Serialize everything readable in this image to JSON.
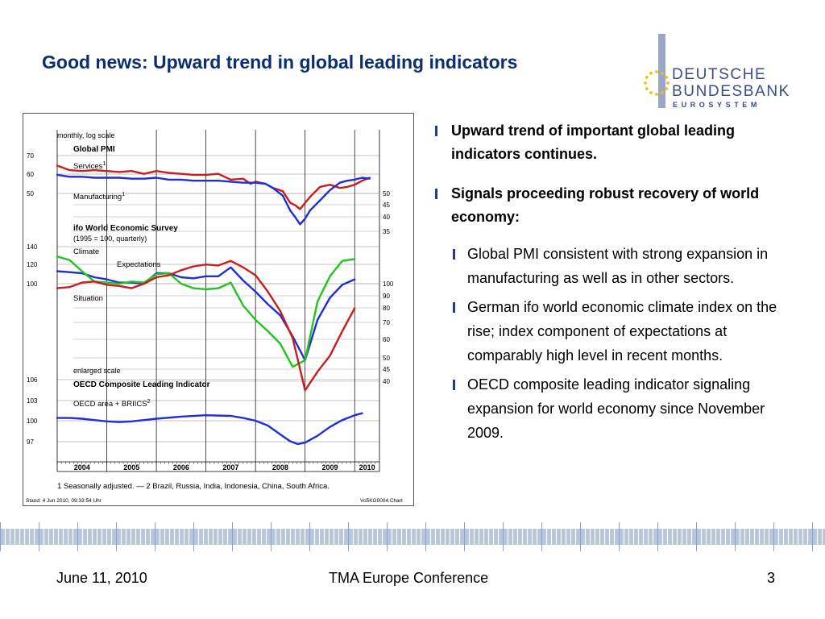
{
  "slide": {
    "title": "Good news: Upward trend in global leading indicators",
    "logo": {
      "word1": "DEUTSCHE",
      "word2": "BUNDESBANK",
      "word3": "EUROSYSTEM"
    },
    "bullets": [
      {
        "level": 1,
        "text": "Upward trend of important global leading indicators continues."
      },
      {
        "level": 1,
        "text": "Signals proceeding robust recovery of world economy:"
      },
      {
        "level": 2,
        "text": "Global PMI consistent with strong expansion in manufacturing as well as in other sectors."
      },
      {
        "level": 2,
        "text": "German ifo world economic climate index on the rise; index component of expectations at comparably high level in recent months."
      },
      {
        "level": 2,
        "text": "OECD composite leading indicator signaling expansion for world economy since November 2009."
      }
    ],
    "colors": {
      "title": "#0b2d72",
      "bullet_mark": "#1f3d8a",
      "red": "#c81e1e",
      "blue": "#1f2fd6",
      "green": "#22c51e"
    }
  },
  "footer": {
    "date": "June 11, 2010",
    "event": "TMA Europe Conference",
    "page": "3"
  },
  "chart_texts": {
    "scale_note": "monthly, log scale",
    "pmi_title": "Global PMI",
    "pmi_services": "Services",
    "pmi_manufacturing": "Manufacturing",
    "sup1": "1",
    "sup2": "2",
    "ifo_title": "ifo World Economic Survey",
    "ifo_subtitle": "(1995 = 100, quarterly)",
    "ifo_climate": "Climate",
    "ifo_expectations": "Expectations",
    "ifo_situation": "Situation",
    "oecd_scale": "enlarged scale",
    "oecd_title": "OECD Composite Leading Indicator",
    "oecd_series": "OECD area + BRIICS",
    "footnote": "1 Seasonally adjusted. — 2 Brazil, Russia, India, Indonesia, China, South Africa.",
    "stamp_left": "Stand: 4 Jun 2010, 09:33:54 Uhr",
    "stamp_right": "Vo5KG0004.Chart"
  },
  "chart_data": [
    {
      "type": "line",
      "title": "Global PMI",
      "scale": "log",
      "left_ticks": [
        50,
        60,
        70
      ],
      "right_ticks": [
        35,
        40,
        45,
        50
      ],
      "ylim": [
        50,
        70
      ],
      "series": [
        {
          "name": "Services",
          "color": "#c81e1e",
          "x": [
            2004.0,
            2004.25,
            2004.5,
            2004.75,
            2005.0,
            2005.25,
            2005.5,
            2005.75,
            2006.0,
            2006.25,
            2006.5,
            2006.75,
            2007.0,
            2007.25,
            2007.5,
            2007.75,
            2007.9,
            2008.0,
            2008.2,
            2008.35,
            2008.55,
            2008.7,
            2008.8,
            2008.9,
            2009.0,
            2009.1,
            2009.3,
            2009.5,
            2009.7,
            2009.85,
            2010.0,
            2010.15,
            2010.3
          ],
          "y": [
            64,
            61.5,
            61,
            61.5,
            61,
            60.5,
            61,
            59.5,
            61,
            60,
            59.5,
            59,
            59,
            59.5,
            56.5,
            57,
            54.5,
            55.5,
            54.5,
            52.5,
            51,
            46,
            45,
            43.5,
            46,
            48.5,
            53,
            54,
            52.5,
            53,
            54,
            56,
            57.5
          ]
        },
        {
          "name": "Manufacturing",
          "color": "#1f2fd6",
          "x": [
            2004.0,
            2004.25,
            2004.5,
            2004.75,
            2005.0,
            2005.25,
            2005.5,
            2005.75,
            2006.0,
            2006.25,
            2006.5,
            2006.75,
            2007.0,
            2007.25,
            2007.5,
            2007.75,
            2008.0,
            2008.2,
            2008.35,
            2008.55,
            2008.7,
            2008.8,
            2008.9,
            2009.0,
            2009.1,
            2009.3,
            2009.5,
            2009.7,
            2009.85,
            2010.0,
            2010.15,
            2010.3
          ],
          "y": [
            59,
            58,
            58,
            57.5,
            57.5,
            57.5,
            57,
            57,
            57.5,
            56.5,
            56.5,
            56,
            56,
            56,
            55.5,
            55,
            55,
            54.5,
            52.5,
            49,
            43,
            40.5,
            38,
            40,
            43,
            47,
            51.5,
            55,
            56,
            56.5,
            57.5,
            57
          ]
        }
      ]
    },
    {
      "type": "line",
      "title": "ifo World Economic Survey",
      "subtitle": "(1995 = 100, quarterly)",
      "scale": "log",
      "left_ticks": [
        100,
        120,
        140
      ],
      "right_ticks": [
        40,
        45,
        50,
        60,
        70,
        80,
        90,
        100
      ],
      "ylim": [
        40,
        140
      ],
      "series": [
        {
          "name": "Climate",
          "color": "#1f2fd6",
          "x": [
            2004.0,
            2004.25,
            2004.5,
            2004.75,
            2005.0,
            2005.25,
            2005.5,
            2005.75,
            2006.0,
            2006.25,
            2006.5,
            2006.75,
            2007.0,
            2007.25,
            2007.5,
            2007.75,
            2008.0,
            2008.25,
            2008.5,
            2008.75,
            2009.0,
            2009.25,
            2009.5,
            2009.75,
            2010.0
          ],
          "y": [
            112,
            111,
            110,
            106,
            104,
            101,
            101,
            100,
            110,
            110,
            106,
            105,
            107,
            107,
            116,
            103,
            93,
            83,
            75,
            62,
            50,
            72,
            88,
            99,
            104
          ]
        },
        {
          "name": "Expectations",
          "color": "#22c51e",
          "x": [
            2004.0,
            2004.25,
            2004.5,
            2004.75,
            2005.0,
            2005.25,
            2005.5,
            2005.75,
            2006.0,
            2006.25,
            2006.5,
            2006.75,
            2007.0,
            2007.25,
            2007.5,
            2007.75,
            2008.0,
            2008.25,
            2008.5,
            2008.75,
            2009.0,
            2009.25,
            2009.5,
            2009.75,
            2010.0
          ],
          "y": [
            128,
            124,
            112,
            102,
            101,
            100,
            102,
            101,
            109,
            110,
            100,
            96,
            95,
            96,
            101,
            82,
            72,
            65,
            58,
            47,
            50,
            85,
            107,
            123,
            125
          ]
        },
        {
          "name": "Situation",
          "color": "#c81e1e",
          "x": [
            2004.0,
            2004.25,
            2004.5,
            2004.75,
            2005.0,
            2005.25,
            2005.5,
            2005.75,
            2006.0,
            2006.25,
            2006.5,
            2006.75,
            2007.0,
            2007.25,
            2007.5,
            2007.75,
            2008.0,
            2008.25,
            2008.5,
            2008.75,
            2009.0,
            2009.25,
            2009.5,
            2009.75,
            2010.0
          ],
          "y": [
            96,
            97,
            101,
            102,
            99,
            98,
            96,
            100,
            106,
            108,
            113,
            117,
            119,
            118,
            123,
            116,
            108,
            93,
            78,
            61,
            38,
            45,
            52,
            65,
            80
          ]
        }
      ]
    },
    {
      "type": "line",
      "title": "OECD Composite Leading Indicator",
      "subtitle": "enlarged scale",
      "left_ticks": [
        97,
        100,
        103,
        106
      ],
      "ylim": [
        96,
        106
      ],
      "series": [
        {
          "name": "OECD area + BRIICS",
          "color": "#1f2fd6",
          "x": [
            2004.0,
            2004.25,
            2004.5,
            2004.75,
            2005.0,
            2005.25,
            2005.5,
            2005.75,
            2006.0,
            2006.5,
            2007.0,
            2007.5,
            2007.75,
            2008.0,
            2008.25,
            2008.5,
            2008.7,
            2008.85,
            2009.0,
            2009.25,
            2009.5,
            2009.75,
            2010.0,
            2010.15
          ],
          "y": [
            100.4,
            100.4,
            100.3,
            100.1,
            99.9,
            99.8,
            99.9,
            100.1,
            100.3,
            100.6,
            100.8,
            100.7,
            100.4,
            100.0,
            99.3,
            98.0,
            97.0,
            96.6,
            96.8,
            97.8,
            99.1,
            100.1,
            100.8,
            101.1
          ]
        }
      ]
    }
  ],
  "x_axis": {
    "years": [
      "2004",
      "2005",
      "2006",
      "2007",
      "2008",
      "2009",
      "2010"
    ]
  }
}
